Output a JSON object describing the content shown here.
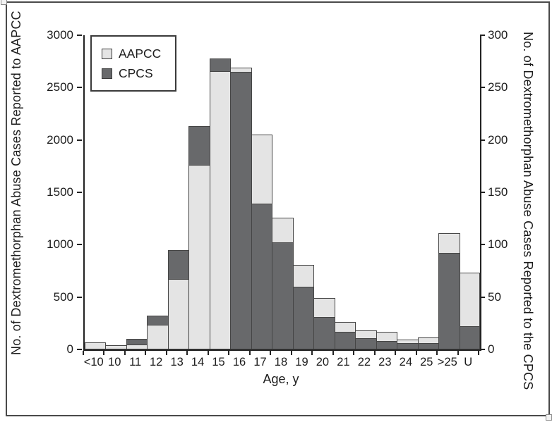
{
  "figure": {
    "left_axis_title": "No. of Dextromethorphan Abuse Cases Reported to AAPCC",
    "right_axis_title": "No. of Dextromethorphan Abuse Cases Reported to the CPCS",
    "x_axis_title": "Age, y",
    "legend": [
      {
        "label": "AAPCC",
        "color": "#e4e4e4"
      },
      {
        "label": "CPCS",
        "color": "#68696b"
      }
    ]
  },
  "chart_data": {
    "type": "bar",
    "title": "",
    "xlabel": "Age, y",
    "ylabel_left": "No. of Dextromethorphan Abuse Cases Reported to AAPCC",
    "ylabel_right": "No. of Dextromethorphan Abuse Cases Reported to the CPCS",
    "categories": [
      "<10",
      "10",
      "11",
      "12",
      "13",
      "14",
      "15",
      "16",
      "17",
      "18",
      "19",
      "20",
      "21",
      "22",
      "23",
      "24",
      "25",
      ">25",
      "U"
    ],
    "series": [
      {
        "name": "AAPCC",
        "axis": "left",
        "color": "#e4e4e4",
        "values": [
          65,
          40,
          50,
          235,
          675,
          1760,
          2660,
          2690,
          2050,
          1260,
          810,
          490,
          260,
          180,
          165,
          95,
          115,
          1110,
          730
        ]
      },
      {
        "name": "CPCS",
        "axis": "right",
        "color": "#68696b",
        "values": [
          0,
          0,
          10,
          32,
          95,
          213,
          278,
          265,
          139,
          102,
          60,
          31,
          17,
          11,
          8,
          6,
          6,
          92,
          22
        ]
      }
    ],
    "left_axis": {
      "ticks": [
        0,
        500,
        1000,
        1500,
        2000,
        2500,
        3000
      ],
      "min": 0,
      "max": 3000
    },
    "right_axis": {
      "ticks": [
        0,
        50,
        100,
        150,
        200,
        250,
        300
      ],
      "min": 0,
      "max": 300
    },
    "legend_position": "upper-left-inside",
    "grid": false,
    "note_overlay": "Bars for the two series are overlaid (not stacked); the shorter bar is drawn in front. Right axis = left axis / 10."
  },
  "colors": {
    "aapcc_fill": "#e4e4e4",
    "cpcs_fill": "#68696b",
    "bar_border": "#454545",
    "axis": "#222222",
    "frame_border": "#4a4a4a"
  }
}
